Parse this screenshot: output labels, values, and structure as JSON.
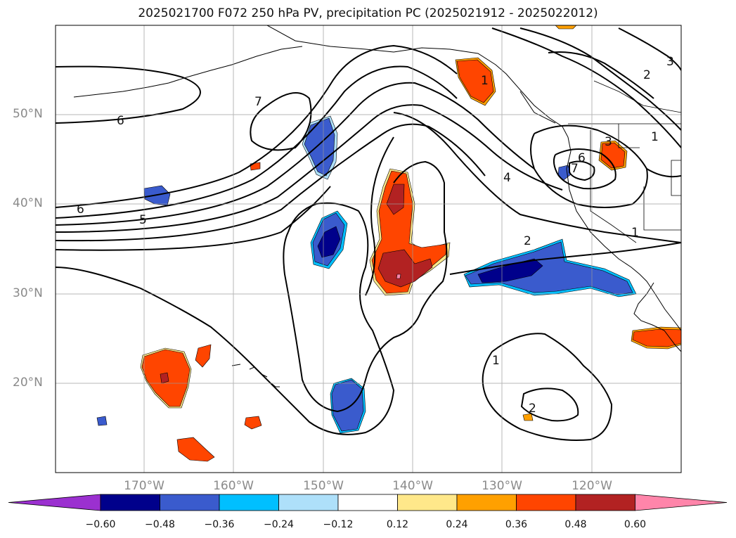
{
  "title": "2025021700 F072 250 hPa PV, precipitation PC (2025021912 - 2025022012)",
  "map": {
    "lat_labels": [
      "50°N",
      "40°N",
      "30°N",
      "20°N"
    ],
    "lon_labels": [
      "170°W",
      "160°W",
      "150°W",
      "140°W",
      "130°W",
      "120°W"
    ],
    "contour_labels": [
      "6",
      "6",
      "5",
      "7",
      "4",
      "2",
      "1",
      "1",
      "2",
      "2",
      "3",
      "1",
      "3",
      "6",
      "7",
      "1"
    ]
  },
  "colorbar": {
    "ticks": [
      "−0.60",
      "−0.48",
      "−0.36",
      "−0.24",
      "−0.12",
      "0.12",
      "0.24",
      "0.36",
      "0.48",
      "0.60"
    ],
    "colors": [
      "#9b30d0",
      "#00008b",
      "#3a5bcd",
      "#00bfff",
      "#aee0fa",
      "#ffffff",
      "#ffe88a",
      "#ffa000",
      "#ff4500",
      "#b22222",
      "#ff85aa"
    ]
  }
}
